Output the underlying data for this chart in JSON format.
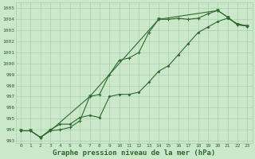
{
  "background_color": "#cbe8cb",
  "grid_color": "#aacfaa",
  "line_color": "#2d6a2d",
  "title": "Graphe pression niveau de la mer (hPa)",
  "title_fontsize": 6.5,
  "ylim": [
    992.8,
    1005.5
  ],
  "xlim": [
    -0.5,
    23.5
  ],
  "yticks": [
    993,
    994,
    995,
    996,
    997,
    998,
    999,
    1000,
    1001,
    1002,
    1003,
    1004,
    1005
  ],
  "xticks": [
    0,
    1,
    2,
    3,
    4,
    5,
    6,
    7,
    8,
    9,
    10,
    11,
    12,
    13,
    14,
    15,
    16,
    17,
    18,
    19,
    20,
    21,
    22,
    23
  ],
  "line1_x": [
    0,
    1,
    2,
    3,
    4,
    5,
    6,
    7,
    8,
    9,
    10,
    11,
    12,
    13,
    14,
    15,
    16,
    17,
    18,
    19,
    20,
    21,
    22,
    23
  ],
  "line1_y": [
    993.9,
    993.9,
    993.3,
    993.9,
    994.0,
    994.2,
    994.8,
    997.0,
    997.2,
    999.0,
    1000.3,
    1000.5,
    1001.0,
    1002.8,
    1004.0,
    1004.0,
    1004.1,
    1004.0,
    1004.1,
    1004.5,
    1004.8,
    1004.2,
    1003.5,
    1003.4
  ],
  "line2_x": [
    0,
    1,
    2,
    3,
    4,
    5,
    6,
    7,
    8,
    9,
    10,
    11,
    12,
    13,
    14,
    15,
    16,
    17,
    18,
    19,
    20,
    21,
    22,
    23
  ],
  "line2_y": [
    993.9,
    993.9,
    993.3,
    994.0,
    994.5,
    994.5,
    995.1,
    995.3,
    995.1,
    997.0,
    997.2,
    997.2,
    997.4,
    998.3,
    999.3,
    999.8,
    1000.8,
    1001.8,
    1002.8,
    1003.3,
    1003.8,
    1004.1,
    1003.6,
    1003.4
  ],
  "line3_x": [
    0,
    1,
    2,
    3,
    7,
    14,
    20,
    21,
    22,
    23
  ],
  "line3_y": [
    993.9,
    993.9,
    993.3,
    993.9,
    997.0,
    1004.0,
    1004.8,
    1004.2,
    1003.5,
    1003.4
  ]
}
